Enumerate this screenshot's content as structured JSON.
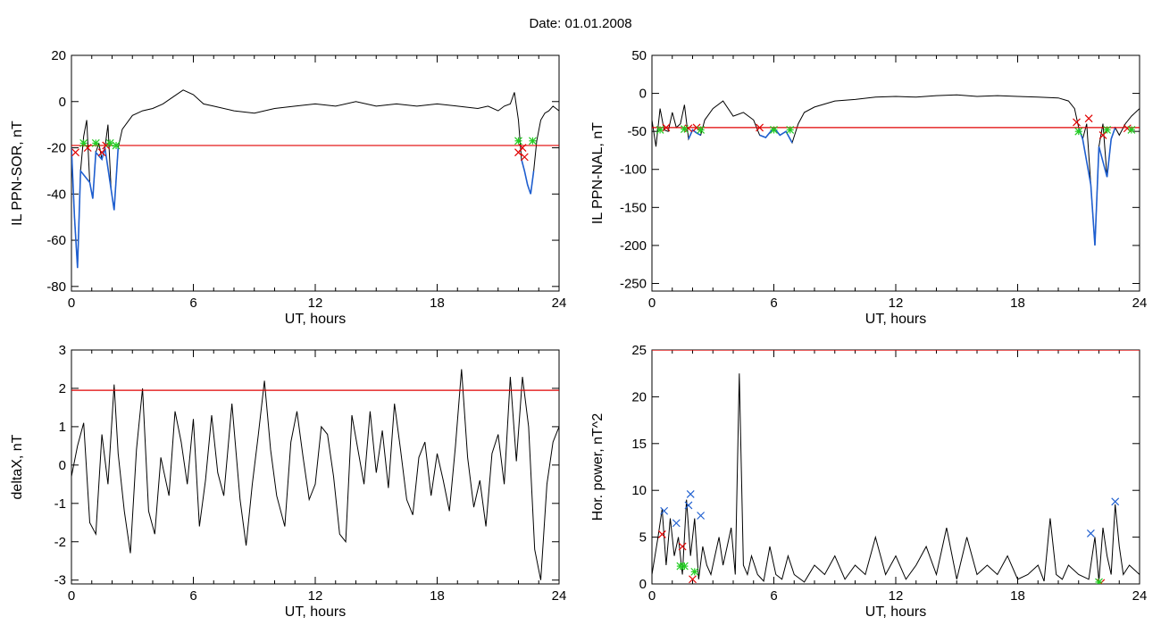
{
  "title": "Date:  01.01.2008",
  "colors": {
    "trace": "#000000",
    "threshold": "#e00000",
    "highlight": "#1f5fd0",
    "marker_red": "#e00000",
    "marker_green": "#22cc22",
    "marker_blue": "#2060d0"
  },
  "chart_data": [
    {
      "type": "line",
      "xlabel": "UT, hours",
      "ylabel": "IL PPN-SOR, nT",
      "xlim": [
        0,
        24
      ],
      "ylim": [
        -82,
        20
      ],
      "xticks": [
        0,
        6,
        12,
        18,
        24
      ],
      "yticks": [
        20,
        0,
        -20,
        -40,
        -60,
        -80
      ],
      "threshold": -19,
      "series": [
        {
          "x": [
            0,
            0.15,
            0.3,
            0.45,
            0.6,
            0.75,
            0.9,
            1.05,
            1.2,
            1.35,
            1.5,
            1.65,
            1.8,
            1.95,
            2.1,
            2.3,
            2.5,
            3,
            3.5,
            4,
            4.5,
            5,
            5.5,
            6,
            6.5,
            7,
            8,
            9,
            10,
            11,
            12,
            13,
            14,
            15,
            16,
            17,
            18,
            19,
            20,
            20.5,
            21,
            21.3,
            21.6,
            21.8,
            22,
            22.15,
            22.3,
            22.45,
            22.6,
            22.75,
            22.9,
            23.1,
            23.3,
            23.5,
            23.7,
            24
          ],
          "y": [
            -20,
            -50,
            -72,
            -30,
            -15,
            -8,
            -35,
            -42,
            -22,
            -18,
            -25,
            -20,
            -10,
            -38,
            -47,
            -20,
            -12,
            -6,
            -4,
            -3,
            -1,
            2,
            5,
            3,
            -1,
            -2,
            -4,
            -5,
            -3,
            -2,
            -1,
            -2,
            0,
            -2,
            -1,
            -2,
            -1,
            -2,
            -3,
            -2,
            -4,
            -2,
            -1,
            4,
            -8,
            -25,
            -30,
            -36,
            -40,
            -30,
            -17,
            -8,
            -5,
            -4,
            -2,
            -4
          ]
        }
      ],
      "highlight_ranges": [
        [
          0,
          2.4
        ],
        [
          21.8,
          23
        ]
      ],
      "markers": [
        {
          "kind": "x",
          "color": "red",
          "points": [
            [
              0.2,
              -22
            ],
            [
              0.8,
              -20
            ],
            [
              1.5,
              -22
            ],
            [
              1.7,
              -19
            ],
            [
              22.0,
              -22
            ],
            [
              22.2,
              -20
            ],
            [
              22.3,
              -24
            ]
          ]
        },
        {
          "kind": "x",
          "color": "green",
          "points": [
            [
              0.6,
              -18
            ],
            [
              1.2,
              -18
            ],
            [
              1.9,
              -18
            ],
            [
              2.2,
              -19
            ],
            [
              22.0,
              -17
            ],
            [
              22.7,
              -17
            ]
          ]
        }
      ]
    },
    {
      "type": "line",
      "xlabel": "UT, hours",
      "ylabel": "IL PPN-NAL, nT",
      "xlim": [
        0,
        24
      ],
      "ylim": [
        -260,
        50
      ],
      "xticks": [
        0,
        6,
        12,
        18,
        24
      ],
      "yticks": [
        50,
        0,
        -50,
        -100,
        -150,
        -200,
        -250
      ],
      "threshold": -45,
      "series": [
        {
          "x": [
            0,
            0.2,
            0.4,
            0.6,
            0.8,
            1,
            1.2,
            1.4,
            1.6,
            1.8,
            2,
            2.2,
            2.4,
            2.6,
            3,
            3.5,
            4,
            4.5,
            5,
            5.3,
            5.6,
            6,
            6.3,
            6.6,
            6.9,
            7.2,
            7.5,
            8,
            9,
            10,
            11,
            12,
            13,
            14,
            15,
            16,
            17,
            18,
            19,
            20,
            20.5,
            20.8,
            21,
            21.2,
            21.4,
            21.6,
            21.8,
            22,
            22.2,
            22.4,
            22.6,
            22.8,
            23,
            23.3,
            23.6,
            24
          ],
          "y": [
            -35,
            -70,
            -20,
            -48,
            -50,
            -25,
            -45,
            -40,
            -15,
            -60,
            -48,
            -52,
            -55,
            -35,
            -20,
            -10,
            -30,
            -25,
            -35,
            -55,
            -58,
            -45,
            -55,
            -50,
            -65,
            -40,
            -25,
            -18,
            -10,
            -8,
            -5,
            -4,
            -5,
            -3,
            -2,
            -4,
            -3,
            -4,
            -5,
            -6,
            -10,
            -20,
            -45,
            -60,
            -40,
            -120,
            -200,
            -70,
            -40,
            -110,
            -60,
            -45,
            -55,
            -40,
            -30,
            -20
          ]
        }
      ],
      "highlight_ranges": [
        [
          0,
          0.5
        ],
        [
          1.4,
          2.4
        ],
        [
          5,
          7
        ],
        [
          20.8,
          22.8
        ]
      ],
      "markers": [
        {
          "kind": "x",
          "color": "red",
          "points": [
            [
              0.7,
              -45
            ],
            [
              1.8,
              -46
            ],
            [
              2.2,
              -45
            ],
            [
              5.3,
              -45
            ],
            [
              20.9,
              -38
            ],
            [
              21.5,
              -33
            ],
            [
              22.2,
              -55
            ],
            [
              23.4,
              -46
            ]
          ]
        },
        {
          "kind": "x",
          "color": "green",
          "points": [
            [
              0.4,
              -48
            ],
            [
              1.6,
              -47
            ],
            [
              2.4,
              -48
            ],
            [
              6.0,
              -48
            ],
            [
              6.8,
              -48
            ],
            [
              21.0,
              -50
            ],
            [
              22.4,
              -48
            ],
            [
              23.6,
              -48
            ]
          ]
        }
      ]
    },
    {
      "type": "line",
      "xlabel": "UT, hours",
      "ylabel": "deltaX, nT",
      "xlim": [
        0,
        24
      ],
      "ylim": [
        -3.1,
        3
      ],
      "xticks": [
        0,
        6,
        12,
        18,
        24
      ],
      "yticks": [
        3,
        2,
        1,
        0,
        -1,
        -2,
        -3
      ],
      "threshold": 1.95,
      "series": [
        {
          "x": [
            0,
            0.3,
            0.6,
            0.9,
            1.2,
            1.5,
            1.8,
            2.1,
            2.3,
            2.6,
            2.9,
            3.2,
            3.5,
            3.8,
            4.1,
            4.4,
            4.8,
            5.1,
            5.4,
            5.7,
            6,
            6.3,
            6.6,
            6.9,
            7.2,
            7.5,
            7.9,
            8.3,
            8.6,
            8.9,
            9.2,
            9.5,
            9.8,
            10.1,
            10.5,
            10.8,
            11.1,
            11.4,
            11.7,
            12,
            12.3,
            12.6,
            12.9,
            13.2,
            13.5,
            13.8,
            14.1,
            14.4,
            14.7,
            15,
            15.3,
            15.6,
            15.9,
            16.2,
            16.5,
            16.8,
            17.1,
            17.4,
            17.7,
            18,
            18.3,
            18.6,
            18.9,
            19.2,
            19.5,
            19.8,
            20.1,
            20.4,
            20.7,
            21,
            21.3,
            21.6,
            21.9,
            22.2,
            22.5,
            22.8,
            23.1,
            23.4,
            23.7,
            24
          ],
          "y": [
            -0.3,
            0.5,
            1.1,
            -1.5,
            -1.8,
            0.8,
            -0.5,
            2.1,
            0.3,
            -1.2,
            -2.3,
            0.4,
            2.0,
            -1.2,
            -1.8,
            0.2,
            -0.8,
            1.4,
            0.6,
            -0.5,
            1.2,
            -1.6,
            -0.4,
            1.3,
            -0.2,
            -0.8,
            1.6,
            -0.9,
            -2.1,
            -0.5,
            0.8,
            2.2,
            0.4,
            -0.8,
            -1.6,
            0.6,
            1.4,
            0.2,
            -0.9,
            -0.5,
            1.0,
            0.8,
            -0.3,
            -1.8,
            -2.0,
            1.3,
            0.4,
            -0.5,
            1.4,
            -0.2,
            0.9,
            -0.6,
            1.6,
            0.4,
            -0.9,
            -1.3,
            0.2,
            0.6,
            -0.8,
            0.3,
            -0.4,
            -1.2,
            0.5,
            2.5,
            0.2,
            -1.1,
            -0.4,
            -1.6,
            0.3,
            0.8,
            -0.5,
            2.3,
            0.1,
            2.3,
            1.0,
            -2.2,
            -3.0,
            -0.5,
            0.6,
            1.0
          ]
        }
      ],
      "highlight_ranges": [],
      "markers": []
    },
    {
      "type": "line",
      "xlabel": "UT, hours",
      "ylabel": "Hor. power, nT^2",
      "xlim": [
        0,
        24
      ],
      "ylim": [
        0,
        25
      ],
      "xticks": [
        0,
        6,
        12,
        18,
        24
      ],
      "yticks": [
        0,
        5,
        10,
        15,
        20,
        25
      ],
      "threshold": 25,
      "series": [
        {
          "x": [
            0,
            0.3,
            0.5,
            0.7,
            0.9,
            1.1,
            1.3,
            1.5,
            1.7,
            1.9,
            2.1,
            2.3,
            2.5,
            2.7,
            2.9,
            3.1,
            3.3,
            3.5,
            3.7,
            3.9,
            4.1,
            4.3,
            4.5,
            4.7,
            4.9,
            5.2,
            5.5,
            5.8,
            6.1,
            6.4,
            6.7,
            7,
            7.5,
            8,
            8.5,
            9,
            9.5,
            10,
            10.5,
            11,
            11.5,
            12,
            12.5,
            13,
            13.5,
            14,
            14.5,
            15,
            15.5,
            16,
            16.5,
            17,
            17.5,
            18,
            18.5,
            19,
            19.3,
            19.6,
            19.9,
            20.2,
            20.5,
            21,
            21.5,
            21.8,
            22,
            22.2,
            22.4,
            22.6,
            22.8,
            23,
            23.2,
            23.5,
            24
          ],
          "y": [
            1,
            5,
            8,
            2,
            7,
            3,
            5,
            1,
            9,
            3,
            7,
            0.5,
            4,
            2,
            1,
            3,
            5,
            2,
            4,
            6,
            1,
            22.5,
            2,
            1,
            3,
            1,
            0.3,
            4,
            1,
            0.5,
            3,
            1,
            0.2,
            2,
            1,
            3,
            0.5,
            2,
            1,
            5,
            1,
            3,
            0.5,
            2,
            4,
            1,
            6,
            0.5,
            5,
            1,
            2,
            1,
            3,
            0.5,
            1,
            2,
            0.3,
            7,
            1,
            0.5,
            2,
            1,
            0.5,
            5,
            0.3,
            6,
            3,
            1,
            8.5,
            4,
            1,
            2,
            1
          ]
        }
      ],
      "highlight_ranges": [],
      "markers": [
        {
          "kind": "x",
          "color": "blue",
          "points": [
            [
              0.6,
              7.8
            ],
            [
              1.2,
              6.5
            ],
            [
              1.9,
              9.6
            ],
            [
              1.8,
              8.4
            ],
            [
              2.4,
              7.3
            ],
            [
              21.6,
              5.4
            ],
            [
              22.8,
              8.8
            ]
          ]
        },
        {
          "kind": "x",
          "color": "red",
          "points": [
            [
              0.5,
              5.3
            ],
            [
              1.5,
              4.0
            ],
            [
              2.0,
              0.5
            ],
            [
              22.1,
              0.1
            ]
          ]
        },
        {
          "kind": "x",
          "color": "green",
          "points": [
            [
              1.4,
              1.9
            ],
            [
              1.6,
              1.9
            ],
            [
              2.1,
              1.3
            ],
            [
              22.0,
              0.2
            ]
          ]
        }
      ]
    }
  ]
}
